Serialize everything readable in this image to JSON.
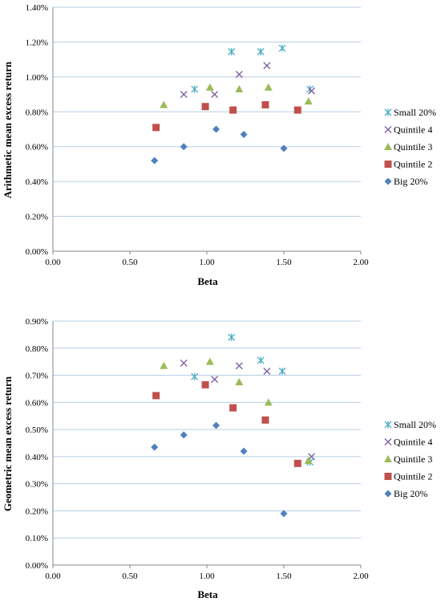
{
  "legend_series": [
    "Small 20%",
    "Quintile 4",
    "Quintile 3",
    "Quintile 2",
    "Big 20%"
  ],
  "series_styles": {
    "Small 20%": {
      "marker": "asterisk",
      "color": "#4bacc6"
    },
    "Quintile 4": {
      "marker": "cross",
      "color": "#8064a2"
    },
    "Quintile 3": {
      "marker": "triangle",
      "color": "#9bbb59"
    },
    "Quintile 2": {
      "marker": "square",
      "color": "#c0504d"
    },
    "Big 20%": {
      "marker": "diamond",
      "color": "#4f81bd"
    }
  },
  "gridline_color": "#b9cde5",
  "chart_data": [
    {
      "type": "scatter",
      "xlabel": "Beta",
      "ylabel": "Arithmetic mean excess return",
      "xlim": [
        0,
        2
      ],
      "ylim": [
        0,
        0.014
      ],
      "x_ticks": [
        "0.00",
        "0.50",
        "1.00",
        "1.50",
        "2.00"
      ],
      "y_ticks": [
        "0.00%",
        "0.20%",
        "0.40%",
        "0.60%",
        "0.80%",
        "1.00%",
        "1.20%",
        "1.40%"
      ],
      "grid": "horizontal",
      "legend_position": "right",
      "series": [
        {
          "name": "Small 20%",
          "points": [
            [
              0.92,
              0.0093
            ],
            [
              1.16,
              0.01145
            ],
            [
              1.35,
              0.01145
            ],
            [
              1.49,
              0.01165
            ],
            [
              1.67,
              0.0093
            ]
          ]
        },
        {
          "name": "Quintile 4",
          "points": [
            [
              0.85,
              0.009
            ],
            [
              1.05,
              0.009
            ],
            [
              1.21,
              0.01015
            ],
            [
              1.39,
              0.01065
            ],
            [
              1.68,
              0.0092
            ]
          ]
        },
        {
          "name": "Quintile 3",
          "points": [
            [
              0.72,
              0.0084
            ],
            [
              1.02,
              0.0094
            ],
            [
              1.21,
              0.0093
            ],
            [
              1.4,
              0.0094
            ],
            [
              1.66,
              0.0086
            ]
          ]
        },
        {
          "name": "Quintile 2",
          "points": [
            [
              0.67,
              0.0071
            ],
            [
              0.99,
              0.0083
            ],
            [
              1.17,
              0.0081
            ],
            [
              1.38,
              0.0084
            ],
            [
              1.59,
              0.0081
            ]
          ]
        },
        {
          "name": "Big 20%",
          "points": [
            [
              0.66,
              0.0052
            ],
            [
              0.85,
              0.006
            ],
            [
              1.06,
              0.007
            ],
            [
              1.24,
              0.0067
            ],
            [
              1.5,
              0.0059
            ]
          ]
        }
      ]
    },
    {
      "type": "scatter",
      "xlabel": "Beta",
      "ylabel": "Geometric mean excess return",
      "xlim": [
        0,
        2
      ],
      "ylim": [
        0,
        0.009
      ],
      "x_ticks": [
        "0.00",
        "0.50",
        "1.00",
        "1.50",
        "2.00"
      ],
      "y_ticks": [
        "0.00%",
        "0.10%",
        "0.20%",
        "0.30%",
        "0.40%",
        "0.50%",
        "0.60%",
        "0.70%",
        "0.80%",
        "0.90%"
      ],
      "grid": "horizontal",
      "legend_position": "right",
      "series": [
        {
          "name": "Small 20%",
          "points": [
            [
              0.92,
              0.00695
            ],
            [
              1.16,
              0.0084
            ],
            [
              1.35,
              0.00755
            ],
            [
              1.49,
              0.00715
            ],
            [
              1.67,
              0.0038
            ]
          ]
        },
        {
          "name": "Quintile 4",
          "points": [
            [
              0.85,
              0.00745
            ],
            [
              1.05,
              0.00685
            ],
            [
              1.21,
              0.00735
            ],
            [
              1.39,
              0.00715
            ],
            [
              1.68,
              0.004
            ]
          ]
        },
        {
          "name": "Quintile 3",
          "points": [
            [
              0.72,
              0.00735
            ],
            [
              1.02,
              0.0075
            ],
            [
              1.21,
              0.00675
            ],
            [
              1.4,
              0.006
            ],
            [
              1.66,
              0.00385
            ]
          ]
        },
        {
          "name": "Quintile 2",
          "points": [
            [
              0.67,
              0.00625
            ],
            [
              0.99,
              0.00665
            ],
            [
              1.17,
              0.0058
            ],
            [
              1.38,
              0.00535
            ],
            [
              1.59,
              0.00375
            ]
          ]
        },
        {
          "name": "Big 20%",
          "points": [
            [
              0.66,
              0.00435
            ],
            [
              0.85,
              0.0048
            ],
            [
              1.06,
              0.00515
            ],
            [
              1.24,
              0.0042
            ],
            [
              1.5,
              0.0019
            ]
          ]
        }
      ]
    }
  ]
}
